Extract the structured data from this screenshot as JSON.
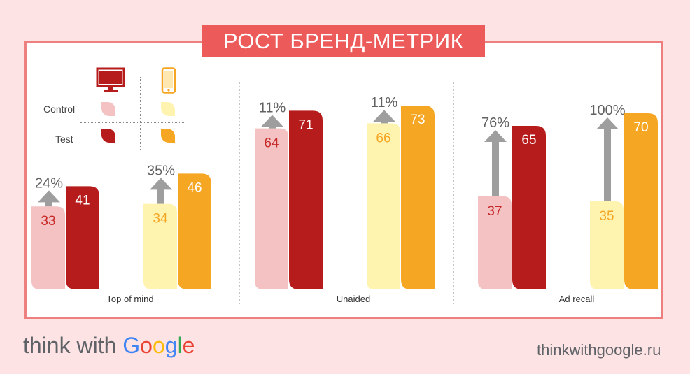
{
  "title": "РОСТ БРЕНД-МЕТРИК",
  "legend": {
    "control_label": "Control",
    "test_label": "Test",
    "devices": [
      {
        "icon": "desktop-icon",
        "color": "#b71c1c"
      },
      {
        "icon": "smartphone-icon",
        "color": "#f5a623"
      }
    ],
    "colors": {
      "desktop_control": "#f4c2c2",
      "desktop_test": "#b71c1c",
      "mobile_control": "#fff3b0",
      "mobile_test": "#f5a623"
    }
  },
  "chart_data": {
    "type": "bar",
    "groups": [
      {
        "label": "Top of mind",
        "desktop": {
          "control": 33,
          "test": 41,
          "lift": "24%"
        },
        "mobile": {
          "control": 34,
          "test": 46,
          "lift": "35%"
        }
      },
      {
        "label": "Unaided",
        "desktop": {
          "control": 64,
          "test": 71,
          "lift": "11%"
        },
        "mobile": {
          "control": 66,
          "test": 73,
          "lift": "11%"
        }
      },
      {
        "label": "Ad recall",
        "desktop": {
          "control": 37,
          "test": 65,
          "lift": "76%"
        },
        "mobile": {
          "control": 35,
          "test": 70,
          "lift": "100%"
        }
      }
    ]
  },
  "footer": {
    "brand_prefix": "think with ",
    "brand_google": [
      "G",
      "o",
      "o",
      "g",
      "l",
      "e"
    ],
    "brand_google_colors": [
      "#4285f4",
      "#ea4335",
      "#fbbc05",
      "#4285f4",
      "#34a853",
      "#ea4335"
    ],
    "url": "thinkwithgoogle.ru"
  }
}
